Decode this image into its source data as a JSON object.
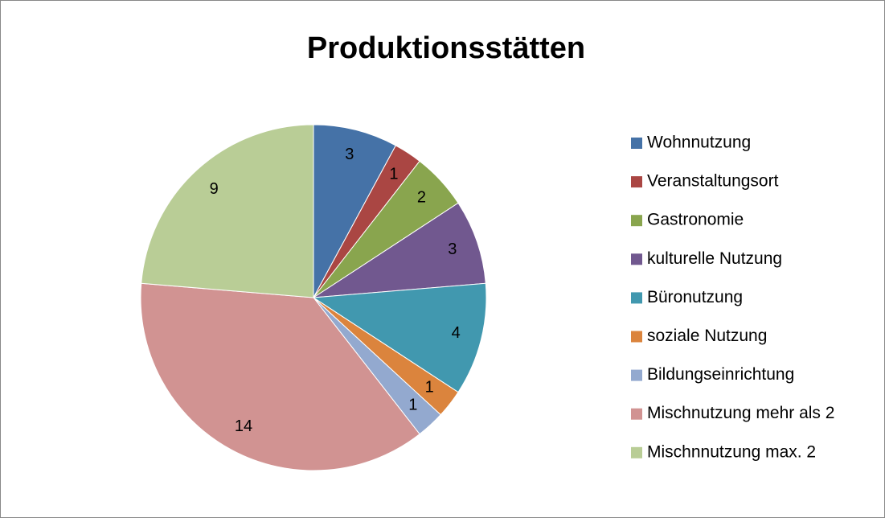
{
  "chart_data": {
    "type": "pie",
    "title": "Produktionsstätten",
    "categories": [
      "Wohnnutzung",
      "Veranstaltungsort",
      "Gastronomie",
      "kulturelle Nutzung",
      "Büronutzung",
      "soziale Nutzung",
      "Bildungseinrichtung",
      "Mischnutzung mehr als 2",
      "Mischnnutzung max. 2"
    ],
    "values": [
      3,
      1,
      2,
      3,
      4,
      1,
      1,
      14,
      9
    ],
    "colors": [
      "#4572A7",
      "#AA4643",
      "#89A54E",
      "#71588F",
      "#4198AF",
      "#DB843D",
      "#93A9CF",
      "#D19392",
      "#B9CD96"
    ],
    "legend": "right"
  }
}
